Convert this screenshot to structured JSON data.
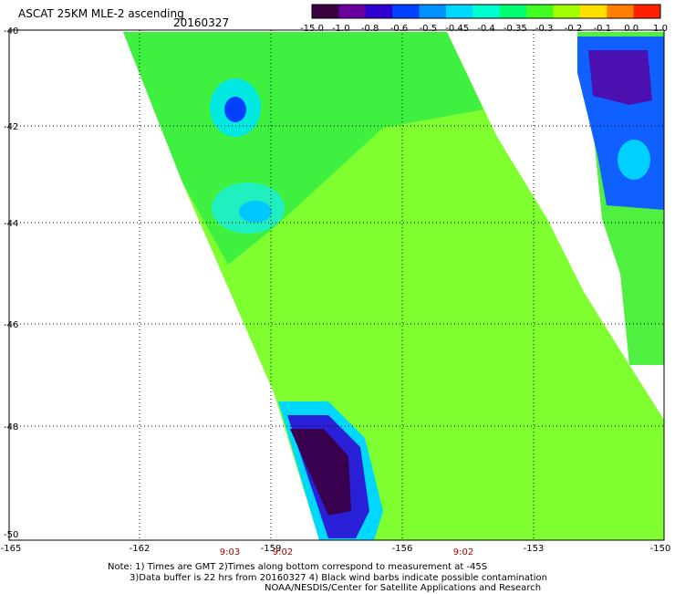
{
  "header": {
    "title": "ASCAT 25KM MLE-2 ascending",
    "date": "20160327"
  },
  "colorbar": {
    "labels": [
      "-15.0",
      "-1.0",
      "-0.8",
      "-0.6",
      "-0.5",
      "-0.45",
      "-0.4",
      "-0.35",
      "-0.3",
      "-0.2",
      "-0.1",
      "0.0",
      "1.0"
    ],
    "colors": [
      "#3a0040",
      "#6a00a0",
      "#2e00d0",
      "#0040ff",
      "#0090ff",
      "#00d8ff",
      "#00ffd0",
      "#00ff70",
      "#40ff20",
      "#a0ff00",
      "#ffe000",
      "#ff8000",
      "#ff2000"
    ]
  },
  "map": {
    "lat_labels": [
      "-40",
      "-42",
      "-44",
      "-46",
      "-48",
      "-50"
    ],
    "lon_labels": [
      "-165",
      "-162",
      "-159",
      "-156",
      "-153",
      "-150"
    ],
    "times": [
      "9:03",
      "9:02",
      "9:02"
    ]
  },
  "notes": {
    "line1": "Note: 1) Times are GMT 2)Times along bottom correspond to measurement at -45S",
    "line2": "3)Data buffer is 22 hrs from 20160327 4) Black wind barbs indicate possible contamination",
    "line3": "NOAA/NESDIS/Center for Satellite Applications and Research"
  }
}
